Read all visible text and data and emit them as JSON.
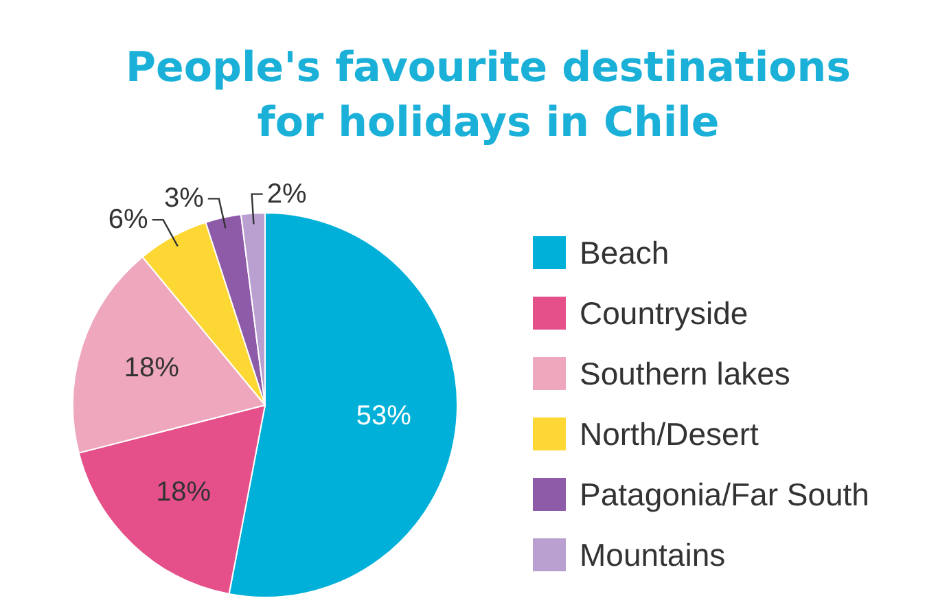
{
  "chart_data": {
    "type": "pie",
    "title": "People's favourite destinations\nfor holidays in Chile",
    "categories": [
      "Beach",
      "Countryside",
      "Southern lakes",
      "North/Desert",
      "Patagonia/Far South",
      "Mountains"
    ],
    "values": [
      53,
      18,
      18,
      6,
      3,
      2
    ],
    "value_labels": [
      "53%",
      "18%",
      "18%",
      "6%",
      "3%",
      "2%"
    ],
    "colors": [
      "#00b0d8",
      "#e5508a",
      "#eea7bd",
      "#fdd835",
      "#8e5ba8",
      "#b9a0d0"
    ],
    "legend": "right"
  }
}
